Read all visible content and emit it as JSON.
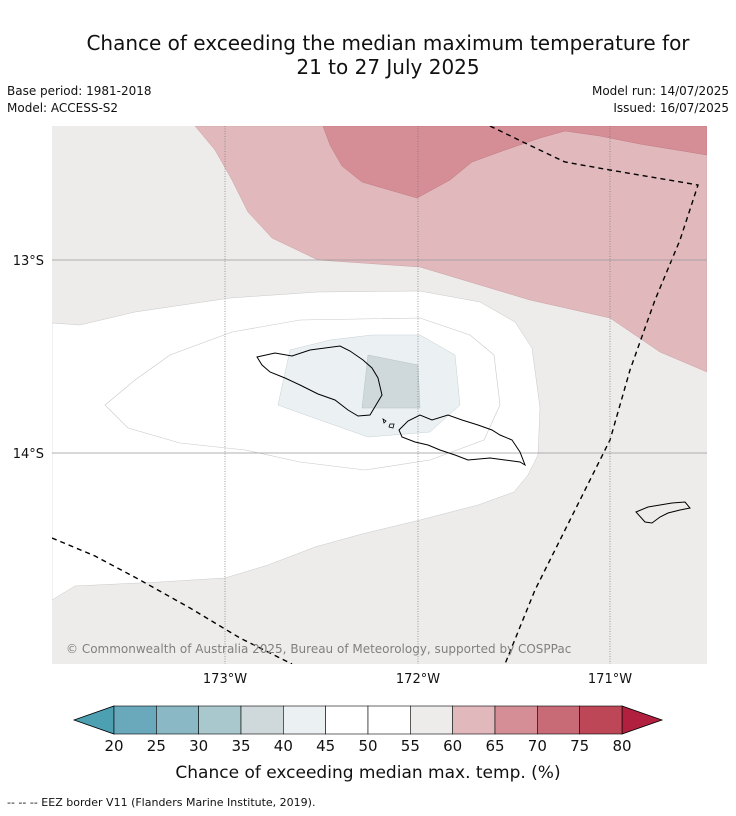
{
  "title": {
    "line1": "Chance of exceeding the median maximum temperature for",
    "line2": "21 to 27 July 2025"
  },
  "meta": {
    "base_period": "Base period: 1981-2018",
    "model": "Model: ACCESS-S2",
    "model_run": "Model run: 14/07/2025",
    "issued": "Issued: 16/07/2025"
  },
  "map": {
    "lat_labels": [
      "13°S",
      "14°S"
    ],
    "lon_labels": [
      "173°W",
      "172°W",
      "171°W"
    ],
    "copyright": "© Commonwealth of Australia 2025, Bureau of Meteorology, supported by COSPPac"
  },
  "colorbar": {
    "ticks": [
      "20",
      "25",
      "30",
      "35",
      "40",
      "45",
      "50",
      "55",
      "60",
      "65",
      "70",
      "75",
      "80"
    ],
    "colors": [
      "#6aa9bb",
      "#8bb8c5",
      "#a8c8cd",
      "#cfd8da",
      "#ebf1f3",
      "#ffffff",
      "#ffffff",
      "#eeeceb",
      "#e1b8bc",
      "#d68e96",
      "#c96b76",
      "#bd4757"
    ],
    "under_color": "#4d9fb2",
    "over_color": "#b22040",
    "label": "Chance of exceeding median max. temp. (%)"
  },
  "footnote": "--  --  -- EEZ border V11 (Flanders Marine Institute, 2019)."
}
